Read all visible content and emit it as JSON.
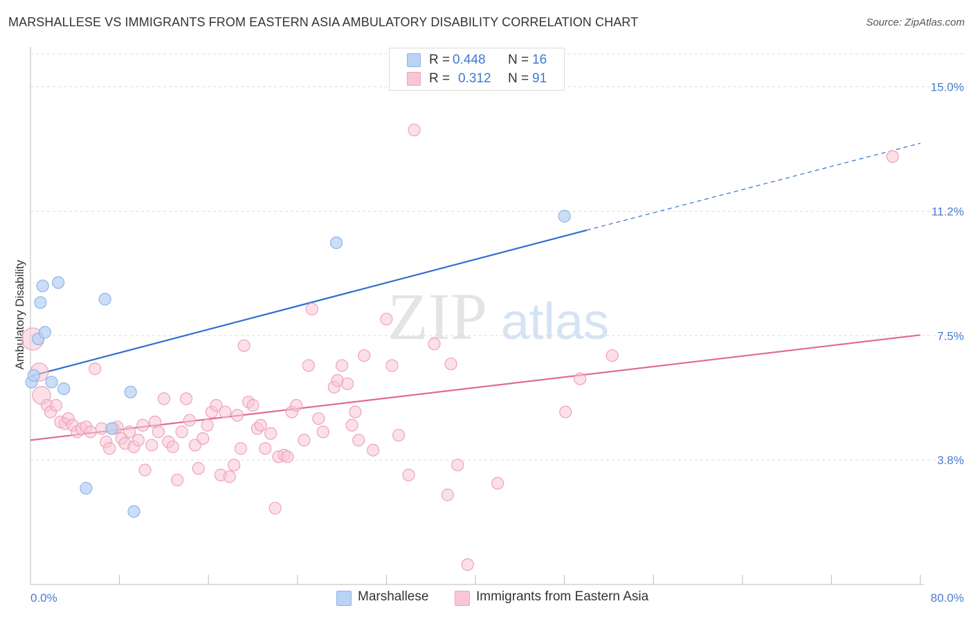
{
  "title": "MARSHALLESE VS IMMIGRANTS FROM EASTERN ASIA AMBULATORY DISABILITY CORRELATION CHART",
  "source": "Source: ZipAtlas.com",
  "watermark": {
    "zip": "ZIP",
    "atlas": "atlas"
  },
  "legend_top": {
    "rows": [
      {
        "r_label": "R =",
        "r_value": "0.448",
        "n_label": "N =",
        "n_value": "16"
      },
      {
        "r_label": "R =",
        "r_value": "0.312",
        "n_label": "N =",
        "n_value": "91"
      }
    ]
  },
  "legend_bottom": {
    "items": [
      {
        "label": "Marshallese"
      },
      {
        "label": "Immigrants from Eastern Asia"
      }
    ]
  },
  "colors": {
    "blue_fill": "#b9d3f4",
    "blue_stroke": "#8fb3e6",
    "blue_line": "#2f6fcf",
    "pink_fill": "#f8c6d6",
    "pink_stroke": "#eea2bb",
    "pink_line": "#e06a96",
    "tick_text": "#4a7bd0",
    "grid": "#dcdcdc"
  },
  "chart_data": {
    "type": "scatter",
    "ylabel": "Ambulatory Disability",
    "xlabel": "",
    "x_tick_labels": [
      "0.0%",
      "80.0%"
    ],
    "y_tick_labels": [
      "15.0%",
      "11.2%",
      "7.5%",
      "3.8%"
    ],
    "y_ticks": [
      15.0,
      11.25,
      7.5,
      3.75
    ],
    "xlim": [
      0,
      80
    ],
    "ylim": [
      0,
      16.2
    ],
    "grid": true,
    "legend_position": "top-center",
    "series": [
      {
        "name": "Marshallese",
        "color": "blue",
        "points": [
          [
            0.1,
            6.1
          ],
          [
            0.3,
            6.3
          ],
          [
            0.7,
            7.4
          ],
          [
            0.9,
            8.5
          ],
          [
            1.1,
            9.0
          ],
          [
            1.3,
            7.6
          ],
          [
            1.9,
            6.1
          ],
          [
            2.5,
            9.1
          ],
          [
            3.0,
            5.9
          ],
          [
            5.0,
            2.9
          ],
          [
            6.7,
            8.6
          ],
          [
            7.3,
            4.7
          ],
          [
            9.0,
            5.8
          ],
          [
            9.3,
            2.2
          ],
          [
            27.5,
            10.3
          ],
          [
            48.0,
            11.1
          ]
        ],
        "trend": {
          "x": [
            0,
            50
          ],
          "y": [
            6.28,
            10.68
          ],
          "dash_to": [
            80,
            13.3
          ]
        }
      },
      {
        "name": "Immigrants from Eastern Asia",
        "color": "pink",
        "points": [
          [
            0.2,
            7.4
          ],
          [
            0.8,
            6.4
          ],
          [
            1.0,
            5.7
          ],
          [
            1.5,
            5.4
          ],
          [
            1.8,
            5.2
          ],
          [
            2.3,
            5.4
          ],
          [
            2.7,
            4.9
          ],
          [
            3.1,
            4.85
          ],
          [
            3.4,
            5.0
          ],
          [
            3.8,
            4.8
          ],
          [
            4.2,
            4.6
          ],
          [
            4.6,
            4.7
          ],
          [
            5.0,
            4.75
          ],
          [
            5.4,
            4.6
          ],
          [
            5.8,
            6.5
          ],
          [
            6.4,
            4.7
          ],
          [
            6.8,
            4.3
          ],
          [
            7.1,
            4.1
          ],
          [
            7.5,
            4.7
          ],
          [
            7.8,
            4.75
          ],
          [
            8.2,
            4.4
          ],
          [
            8.5,
            4.25
          ],
          [
            8.9,
            4.6
          ],
          [
            9.3,
            4.15
          ],
          [
            9.7,
            4.35
          ],
          [
            10.1,
            4.8
          ],
          [
            10.3,
            3.45
          ],
          [
            10.9,
            4.2
          ],
          [
            11.2,
            4.9
          ],
          [
            11.5,
            4.6
          ],
          [
            12.0,
            5.6
          ],
          [
            12.4,
            4.3
          ],
          [
            12.8,
            4.15
          ],
          [
            13.2,
            3.15
          ],
          [
            13.6,
            4.6
          ],
          [
            14.0,
            5.6
          ],
          [
            14.3,
            4.95
          ],
          [
            14.8,
            4.2
          ],
          [
            15.1,
            3.5
          ],
          [
            15.5,
            4.4
          ],
          [
            15.9,
            4.8
          ],
          [
            16.3,
            5.2
          ],
          [
            16.7,
            5.4
          ],
          [
            17.1,
            3.3
          ],
          [
            17.5,
            5.2
          ],
          [
            17.9,
            3.25
          ],
          [
            18.3,
            3.6
          ],
          [
            18.6,
            5.1
          ],
          [
            18.9,
            4.1
          ],
          [
            19.2,
            7.2
          ],
          [
            19.6,
            5.5
          ],
          [
            20.0,
            5.4
          ],
          [
            20.4,
            4.7
          ],
          [
            20.7,
            4.8
          ],
          [
            21.1,
            4.1
          ],
          [
            21.6,
            4.55
          ],
          [
            22.0,
            2.3
          ],
          [
            22.3,
            3.85
          ],
          [
            22.8,
            3.9
          ],
          [
            23.1,
            3.85
          ],
          [
            23.5,
            5.2
          ],
          [
            23.9,
            5.4
          ],
          [
            24.6,
            4.35
          ],
          [
            25.0,
            6.6
          ],
          [
            25.3,
            8.3
          ],
          [
            25.9,
            5.0
          ],
          [
            26.3,
            4.6
          ],
          [
            27.3,
            5.95
          ],
          [
            27.6,
            6.15
          ],
          [
            28.0,
            6.6
          ],
          [
            28.5,
            6.05
          ],
          [
            28.9,
            4.8
          ],
          [
            29.2,
            5.2
          ],
          [
            29.5,
            4.35
          ],
          [
            30.0,
            6.9
          ],
          [
            30.8,
            4.05
          ],
          [
            32.0,
            8.0
          ],
          [
            32.5,
            6.6
          ],
          [
            33.1,
            4.5
          ],
          [
            34.0,
            3.3
          ],
          [
            34.5,
            13.7
          ],
          [
            36.3,
            7.25
          ],
          [
            37.5,
            2.7
          ],
          [
            37.8,
            6.65
          ],
          [
            38.4,
            3.6
          ],
          [
            39.3,
            0.6
          ],
          [
            42.0,
            3.05
          ],
          [
            48.1,
            5.2
          ],
          [
            49.4,
            6.2
          ],
          [
            52.3,
            6.9
          ],
          [
            77.5,
            12.9
          ]
        ],
        "trend": {
          "x": [
            0,
            80
          ],
          "y": [
            4.35,
            7.52
          ]
        }
      }
    ]
  }
}
